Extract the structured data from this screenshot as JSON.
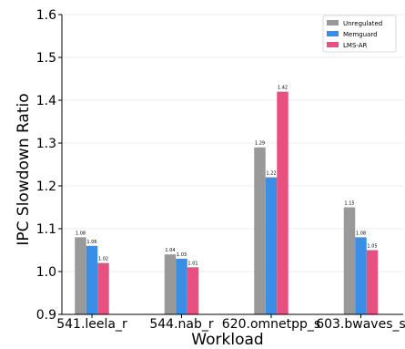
{
  "chart_data": {
    "type": "bar",
    "title": "",
    "xlabel": "Workload",
    "ylabel": "IPC Slowdown Ratio",
    "categories": [
      "541.leela_r",
      "544.nab_r",
      "620.omnetpp_s",
      "603.bwaves_s"
    ],
    "series": [
      {
        "name": "Unregulated",
        "color": "#999999",
        "values": [
          1.08,
          1.04,
          1.29,
          1.15
        ],
        "labels": [
          "1.08",
          "1.04",
          "1.29",
          "1.15"
        ]
      },
      {
        "name": "Memguard",
        "color": "#3a8ee6",
        "values": [
          1.06,
          1.03,
          1.22,
          1.08
        ],
        "labels": [
          "1.06",
          "1.03",
          "1.22",
          "1.08"
        ]
      },
      {
        "name": "LMS-AR",
        "color": "#e8507f",
        "values": [
          1.02,
          1.01,
          1.42,
          1.05
        ],
        "labels": [
          "1.02",
          "1.01",
          "1.42",
          "1.05"
        ]
      }
    ],
    "ylim": [
      0.9,
      1.6
    ],
    "yticks": [
      "0.9",
      "1.0",
      "1.1",
      "1.2",
      "1.3",
      "1.4",
      "1.5",
      "1.6"
    ],
    "grid": true,
    "legend": "top-right"
  }
}
